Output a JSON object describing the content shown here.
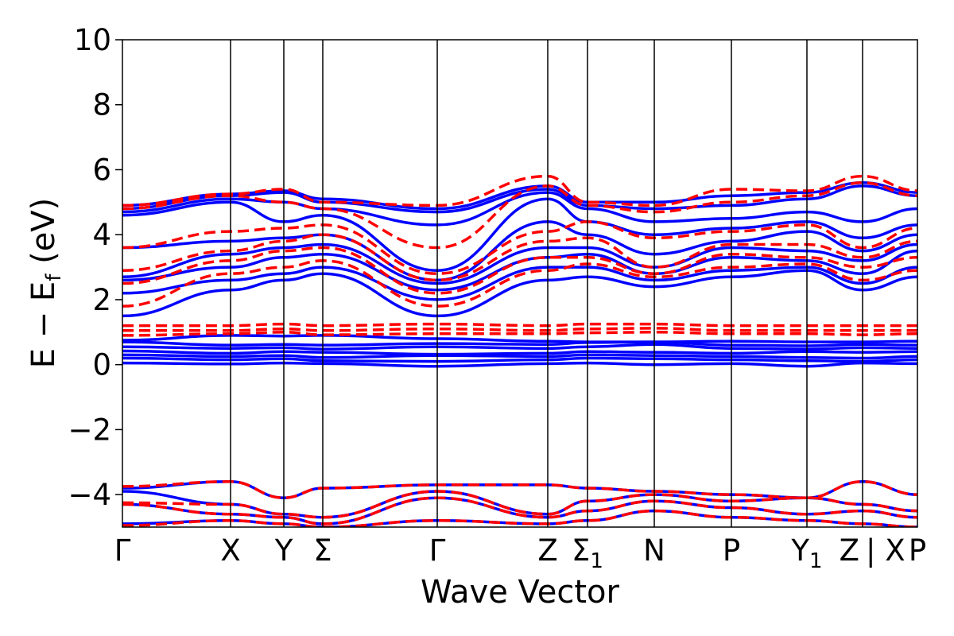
{
  "chart_data": {
    "type": "line",
    "title": "",
    "xlabel": "Wave Vector",
    "ylabel": "E − E_f (eV)",
    "ylabel_parts": {
      "prefix": "E − E",
      "subscript": "f",
      "suffix": " (eV)"
    },
    "ylim": [
      -5,
      10
    ],
    "yticks": [
      -4,
      -2,
      0,
      2,
      4,
      6,
      8,
      10
    ],
    "ytick_labels": [
      "−4",
      "−2",
      "0",
      "2",
      "4",
      "6",
      "8",
      "10"
    ],
    "kpath": [
      {
        "label": "Γ",
        "sub": "",
        "pos": 0.0
      },
      {
        "label": "X",
        "sub": "",
        "pos": 0.136
      },
      {
        "label": "Y",
        "sub": "",
        "pos": 0.203
      },
      {
        "label": "Σ",
        "sub": "",
        "pos": 0.252
      },
      {
        "label": "Γ",
        "sub": "",
        "pos": 0.396
      },
      {
        "label": "Z",
        "sub": "",
        "pos": 0.535
      },
      {
        "label": "Σ",
        "sub": "1",
        "pos": 0.585
      },
      {
        "label": "N",
        "sub": "",
        "pos": 0.669
      },
      {
        "label": "P",
        "sub": "",
        "pos": 0.766
      },
      {
        "label": "Y",
        "sub": "1",
        "pos": 0.861
      },
      {
        "label": "Z",
        "sub": "",
        "pos": 0.931
      },
      {
        "label": "| X",
        "sub": "",
        "pos": 0.931
      },
      {
        "label": "P",
        "sub": "",
        "pos": 1.0
      }
    ],
    "series": [
      {
        "color": "#0000ff",
        "style": "solid",
        "bands": [
          [
            0.05,
            0.02,
            0.05,
            0.03,
            -0.05,
            0.03,
            0.05,
            0.0,
            0.03,
            -0.05,
            0.05,
            0.03
          ],
          [
            0.2,
            0.15,
            0.18,
            0.12,
            0.1,
            0.15,
            0.2,
            0.18,
            0.15,
            0.12,
            0.1,
            0.15
          ],
          [
            0.3,
            0.25,
            0.28,
            0.22,
            0.28,
            0.25,
            0.3,
            0.28,
            0.25,
            0.22,
            0.2,
            0.25
          ],
          [
            0.42,
            0.35,
            0.4,
            0.38,
            0.32,
            0.35,
            0.4,
            0.38,
            0.35,
            0.4,
            0.38,
            0.4
          ],
          [
            0.55,
            0.5,
            0.52,
            0.48,
            0.55,
            0.5,
            0.55,
            0.62,
            0.5,
            0.48,
            0.52,
            0.5
          ],
          [
            0.7,
            0.6,
            0.62,
            0.6,
            0.65,
            0.62,
            0.68,
            0.7,
            0.6,
            0.58,
            0.62,
            0.6
          ],
          [
            0.75,
            0.9,
            0.88,
            0.9,
            0.8,
            0.72,
            0.7,
            0.7,
            0.72,
            0.7,
            0.7,
            0.72
          ],
          [
            1.5,
            2.3,
            2.6,
            2.8,
            1.5,
            2.6,
            2.7,
            2.4,
            2.7,
            2.9,
            2.3,
            2.7
          ],
          [
            2.2,
            2.6,
            2.8,
            3.0,
            2.0,
            3.0,
            3.0,
            2.6,
            2.9,
            3.0,
            2.5,
            3.0
          ],
          [
            2.6,
            3.0,
            3.3,
            3.4,
            2.3,
            3.3,
            3.4,
            2.8,
            3.3,
            3.2,
            2.8,
            3.5
          ],
          [
            2.7,
            3.4,
            3.6,
            3.7,
            2.5,
            3.6,
            3.6,
            3.0,
            3.6,
            3.5,
            3.2,
            3.7
          ],
          [
            3.6,
            3.8,
            3.9,
            4.0,
            2.6,
            4.4,
            4.0,
            3.4,
            3.8,
            4.1,
            3.5,
            4.0
          ],
          [
            4.6,
            5.0,
            4.4,
            4.6,
            2.9,
            5.1,
            4.4,
            4.0,
            4.2,
            4.4,
            3.9,
            4.3
          ],
          [
            4.7,
            5.1,
            5.0,
            4.8,
            4.3,
            5.3,
            4.8,
            4.4,
            4.5,
            4.7,
            4.4,
            4.8
          ],
          [
            4.8,
            5.2,
            5.3,
            5.0,
            4.7,
            5.4,
            4.9,
            4.8,
            4.9,
            5.1,
            5.5,
            5.2
          ],
          [
            4.9,
            5.25,
            5.35,
            5.1,
            4.8,
            5.5,
            5.0,
            5.0,
            5.2,
            5.3,
            5.6,
            5.3
          ],
          [
            -3.8,
            -3.6,
            -4.1,
            -3.8,
            -3.7,
            -3.7,
            -3.8,
            -3.9,
            -4.0,
            -4.1,
            -3.6,
            -4.0
          ],
          [
            -3.9,
            -4.3,
            -4.6,
            -4.7,
            -3.9,
            -4.6,
            -4.2,
            -4.0,
            -4.2,
            -4.1,
            -4.3,
            -4.5
          ],
          [
            -4.3,
            -4.6,
            -4.7,
            -4.9,
            -4.1,
            -4.7,
            -4.5,
            -4.2,
            -4.4,
            -4.6,
            -4.5,
            -4.7
          ],
          [
            -4.9,
            -4.8,
            -4.9,
            -5.0,
            -4.8,
            -4.9,
            -4.8,
            -4.5,
            -4.7,
            -4.8,
            -4.9,
            -5.0
          ]
        ]
      },
      {
        "color": "#ff0000",
        "style": "dashed",
        "bands": [
          [
            0.9,
            0.95,
            1.0,
            0.92,
            0.95,
            0.95,
            0.98,
            1.0,
            0.95,
            0.95,
            0.92,
            0.95
          ],
          [
            1.05,
            1.05,
            1.1,
            1.05,
            1.1,
            1.05,
            1.1,
            1.12,
            1.05,
            1.05,
            1.05,
            1.05
          ],
          [
            1.2,
            1.2,
            1.25,
            1.2,
            1.25,
            1.2,
            1.25,
            1.25,
            1.2,
            1.2,
            1.2,
            1.2
          ],
          [
            1.8,
            2.8,
            3.0,
            3.2,
            1.8,
            2.9,
            3.1,
            2.7,
            3.0,
            3.1,
            2.6,
            2.9
          ],
          [
            2.5,
            3.2,
            3.5,
            3.6,
            2.2,
            3.3,
            3.3,
            2.8,
            3.4,
            3.3,
            3.0,
            3.3
          ],
          [
            2.9,
            3.5,
            3.8,
            4.0,
            2.6,
            3.8,
            3.9,
            3.0,
            3.7,
            3.7,
            3.3,
            3.8
          ],
          [
            3.6,
            4.1,
            4.2,
            4.3,
            2.8,
            4.1,
            4.4,
            3.9,
            4.1,
            4.3,
            3.6,
            4.2
          ],
          [
            4.9,
            5.25,
            5.4,
            5.0,
            4.9,
            5.8,
            5.0,
            4.9,
            5.4,
            5.35,
            5.8,
            5.35
          ],
          [
            4.8,
            5.2,
            5.0,
            4.8,
            3.6,
            5.5,
            4.9,
            4.7,
            5.0,
            5.2,
            5.6,
            5.2
          ],
          [
            -3.75,
            -3.6,
            -4.1,
            -3.8,
            -3.7,
            -3.7,
            -3.8,
            -3.9,
            -4.0,
            -4.1,
            -3.6,
            -4.0
          ],
          [
            -4.25,
            -4.3,
            -4.6,
            -4.7,
            -3.9,
            -4.6,
            -4.2,
            -4.0,
            -4.2,
            -4.1,
            -4.3,
            -4.5
          ],
          [
            -4.3,
            -4.6,
            -4.7,
            -4.9,
            -4.1,
            -4.7,
            -4.5,
            -4.2,
            -4.4,
            -4.6,
            -4.5,
            -4.7
          ],
          [
            -4.95,
            -4.8,
            -4.9,
            -5.0,
            -4.8,
            -4.9,
            -4.8,
            -4.5,
            -4.7,
            -4.8,
            -4.9,
            -5.0
          ]
        ]
      }
    ],
    "grid": false,
    "legend": "none"
  }
}
